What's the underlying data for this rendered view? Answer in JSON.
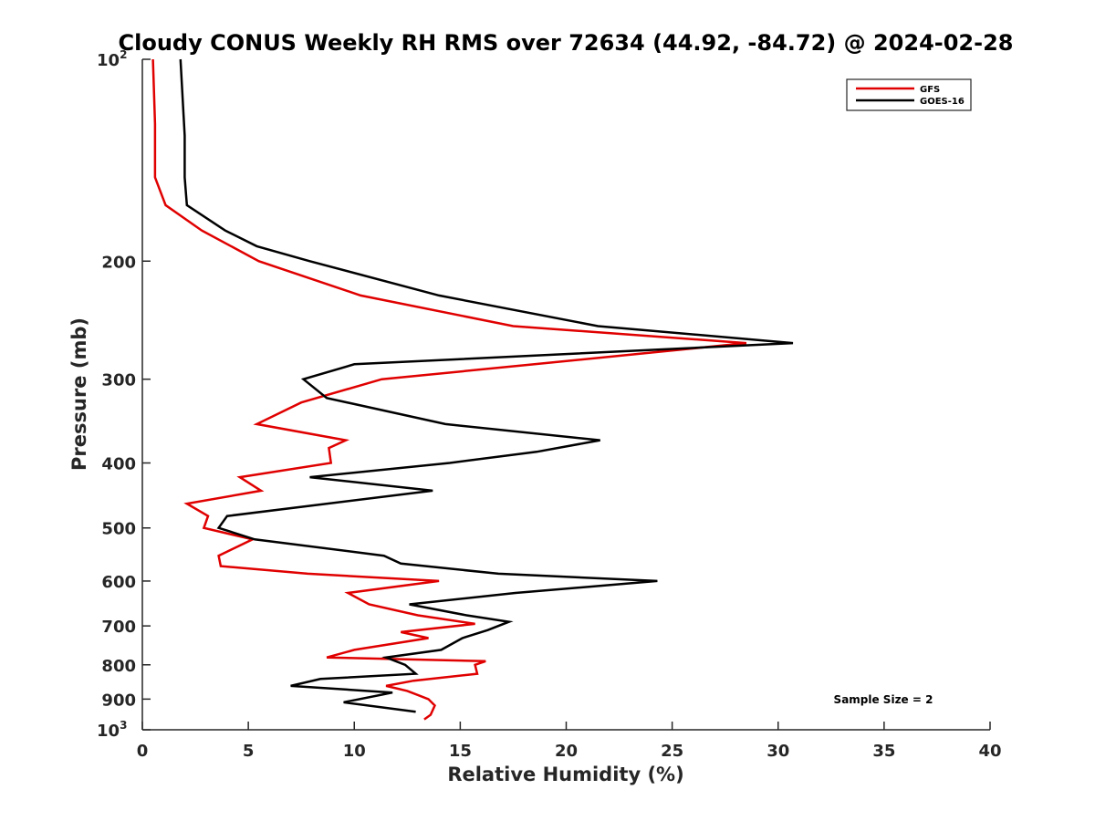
{
  "chart_data": {
    "type": "line",
    "title": "Cloudy CONUS Weekly RH RMS over 72634 (44.92, -84.72) @ 2024-02-28",
    "xlabel": "Relative Humidity (%)",
    "ylabel": "Pressure (mb)",
    "xlim": [
      0,
      40
    ],
    "ylim": [
      100,
      1000
    ],
    "y_scale": "log",
    "y_reversed": true,
    "x_ticks": [
      0,
      5,
      10,
      15,
      20,
      25,
      30,
      35,
      40
    ],
    "x_tick_labels": [
      "0",
      "5",
      "10",
      "15",
      "20",
      "25",
      "30",
      "35",
      "40"
    ],
    "y_ticks": [
      100,
      200,
      300,
      400,
      500,
      600,
      700,
      800,
      900,
      1000
    ],
    "y_tick_labels": [
      {
        "base": "10",
        "sup": "2"
      },
      {
        "base": "200"
      },
      {
        "base": "300"
      },
      {
        "base": "400"
      },
      {
        "base": "500"
      },
      {
        "base": "600"
      },
      {
        "base": "700"
      },
      {
        "base": "800"
      },
      {
        "base": "900"
      },
      {
        "base": "10",
        "sup": "3"
      }
    ],
    "grid": false,
    "legend_position": "top-right",
    "annotation": "Sample Size = 2",
    "series": [
      {
        "name": "GFS",
        "color": "#e00000",
        "points": [
          [
            0.5,
            100
          ],
          [
            0.6,
            125
          ],
          [
            0.6,
            150
          ],
          [
            1.1,
            165
          ],
          [
            2.8,
            180
          ],
          [
            5.5,
            200
          ],
          [
            10.3,
            225
          ],
          [
            17.5,
            250
          ],
          [
            28.5,
            265
          ],
          [
            18.5,
            285
          ],
          [
            11.3,
            300
          ],
          [
            7.5,
            325
          ],
          [
            5.4,
            350
          ],
          [
            9.6,
            370
          ],
          [
            8.8,
            380
          ],
          [
            8.9,
            400
          ],
          [
            4.6,
            420
          ],
          [
            5.6,
            440
          ],
          [
            2.1,
            460
          ],
          [
            3.1,
            480
          ],
          [
            2.9,
            500
          ],
          [
            5.2,
            520
          ],
          [
            3.6,
            550
          ],
          [
            3.7,
            570
          ],
          [
            7.8,
            585
          ],
          [
            14.0,
            600
          ],
          [
            9.7,
            625
          ],
          [
            10.7,
            650
          ],
          [
            13.0,
            675
          ],
          [
            15.7,
            695
          ],
          [
            12.2,
            715
          ],
          [
            13.5,
            730
          ],
          [
            10.0,
            760
          ],
          [
            8.7,
            780
          ],
          [
            16.2,
            790
          ],
          [
            15.7,
            800
          ],
          [
            15.8,
            825
          ],
          [
            12.8,
            845
          ],
          [
            11.5,
            860
          ],
          [
            12.5,
            875
          ],
          [
            13.5,
            900
          ],
          [
            13.8,
            920
          ],
          [
            13.6,
            950
          ],
          [
            13.3,
            965
          ]
        ]
      },
      {
        "name": "GOES-16",
        "color": "#000000",
        "points": [
          [
            1.8,
            100
          ],
          [
            2.0,
            130
          ],
          [
            2.0,
            150
          ],
          [
            2.1,
            165
          ],
          [
            3.9,
            180
          ],
          [
            5.4,
            190
          ],
          [
            7.9,
            200
          ],
          [
            14.0,
            225
          ],
          [
            21.5,
            250
          ],
          [
            30.7,
            265
          ],
          [
            10.0,
            285
          ],
          [
            7.6,
            300
          ],
          [
            8.7,
            320
          ],
          [
            14.3,
            350
          ],
          [
            21.6,
            370
          ],
          [
            18.6,
            385
          ],
          [
            14.5,
            400
          ],
          [
            7.9,
            420
          ],
          [
            13.7,
            440
          ],
          [
            4.0,
            480
          ],
          [
            3.6,
            500
          ],
          [
            5.3,
            520
          ],
          [
            11.4,
            550
          ],
          [
            12.2,
            565
          ],
          [
            16.8,
            585
          ],
          [
            24.3,
            600
          ],
          [
            17.6,
            625
          ],
          [
            12.6,
            650
          ],
          [
            15.3,
            675
          ],
          [
            17.3,
            690
          ],
          [
            16.3,
            710
          ],
          [
            15.1,
            730
          ],
          [
            14.1,
            760
          ],
          [
            11.5,
            780
          ],
          [
            12.4,
            800
          ],
          [
            12.9,
            825
          ],
          [
            8.4,
            840
          ],
          [
            7.0,
            860
          ],
          [
            11.8,
            880
          ],
          [
            9.5,
            910
          ],
          [
            12.9,
            940
          ]
        ]
      }
    ]
  }
}
